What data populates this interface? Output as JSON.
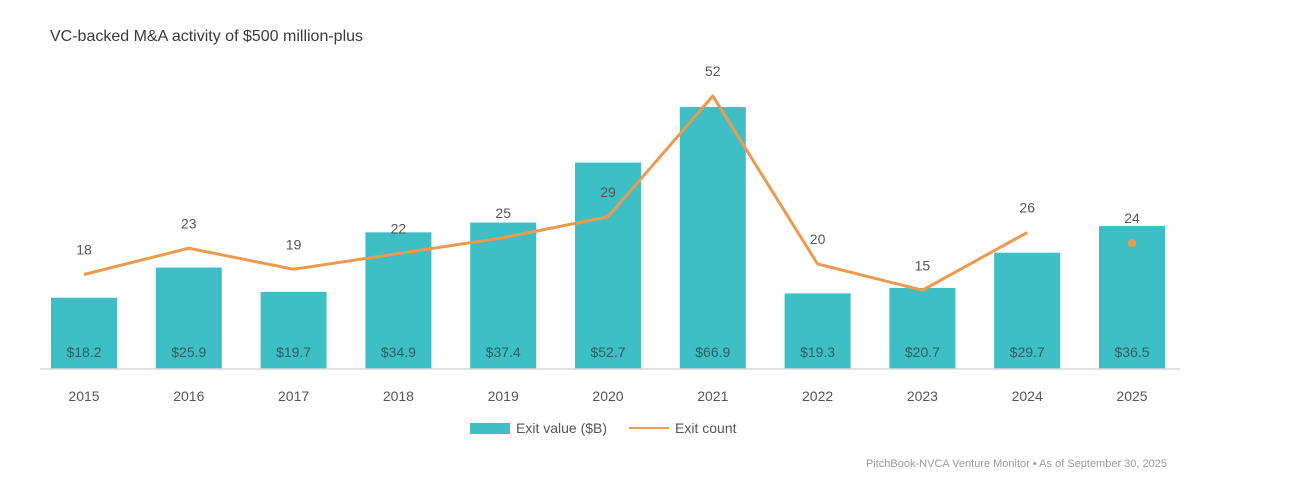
{
  "title": "VC-backed M&A activity of $500 million-plus",
  "source": "PitchBook-NVCA Venture Monitor  •  As of September 30, 2025",
  "colors": {
    "bar": "#3dbfc4",
    "line": "#ec9a4f",
    "axis": "#d8d8d8",
    "text": "#555555"
  },
  "legend": {
    "bar_label": "Exit value ($B)",
    "line_label": "Exit count"
  },
  "chart_data": {
    "type": "bar",
    "title": "VC-backed M&A activity of $500 million-plus",
    "categories": [
      "2015",
      "2016",
      "2017",
      "2018",
      "2019",
      "2020",
      "2021",
      "2022",
      "2023",
      "2024",
      "2025"
    ],
    "series": [
      {
        "name": "Exit value ($B)",
        "type": "bar",
        "values": [
          18.2,
          25.9,
          19.7,
          34.9,
          37.4,
          52.7,
          66.9,
          19.3,
          20.7,
          29.7,
          36.5
        ],
        "labels": [
          "$18.2",
          "$25.9",
          "$19.7",
          "$34.9",
          "$37.4",
          "$52.7",
          "$66.9",
          "$19.3",
          "$20.7",
          "$29.7",
          "$36.5"
        ]
      },
      {
        "name": "Exit count",
        "type": "line",
        "values": [
          18,
          23,
          19,
          22,
          25,
          29,
          52,
          20,
          15,
          26,
          24
        ],
        "labels": [
          "18",
          "23",
          "19",
          "22",
          "25",
          "29",
          "52",
          "20",
          "15",
          "26",
          "24"
        ],
        "note": "2025 shown as standalone point"
      }
    ],
    "xlabel": "",
    "ylabel": "",
    "bar_ylim": [
      0,
      72
    ],
    "line_ylim": [
      0,
      58
    ],
    "grid": false,
    "legend_position": "bottom-center"
  }
}
